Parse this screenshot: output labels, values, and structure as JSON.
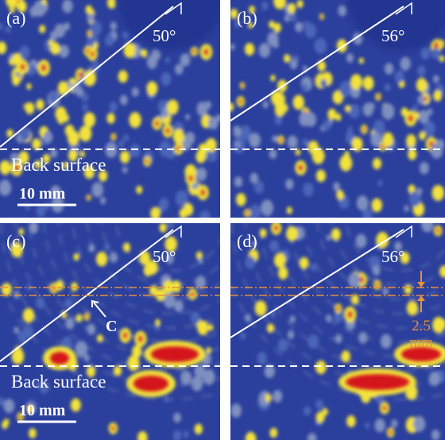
{
  "panels": [
    {
      "label": "(a)",
      "angle": "50°",
      "back_surface": "Back surface",
      "scale_bar": "10 mm"
    },
    {
      "label": "(b)",
      "angle": "56°"
    },
    {
      "label": "(c)",
      "angle": "50°",
      "back_surface": "Back surface",
      "scale_bar": "10 mm",
      "marker": "C"
    },
    {
      "label": "(d)",
      "angle": "56°",
      "spacing": "2.5",
      "spacing_unit": "mm"
    }
  ]
}
